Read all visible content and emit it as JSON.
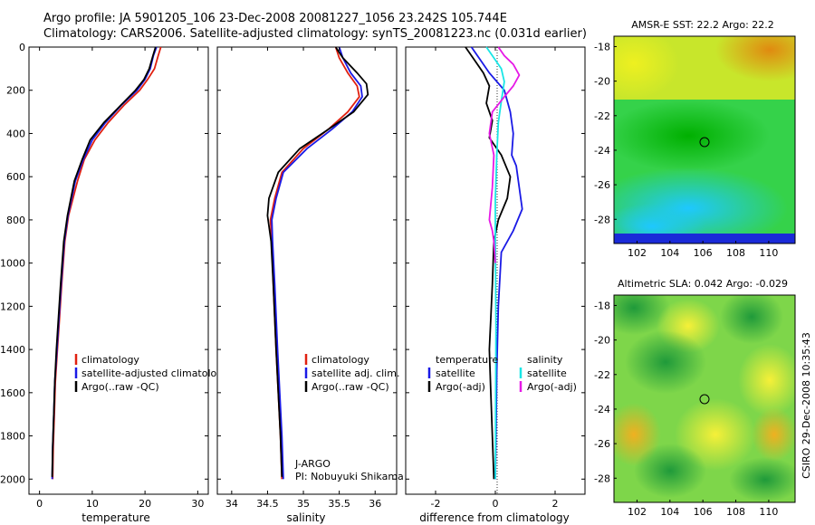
{
  "header": {
    "line1": "Argo profile: JA 5901205_106 23-Dec-2008 20081227_1056 23.242S 105.744E",
    "line2": "Climatology: CARS2006. Satellite-adjusted climatology: synTS_20081223.nc (0.031d earlier)"
  },
  "side_credit": "CSIRO 29-Dec-2008 10:35:43",
  "colors": {
    "climatology": "#e02010",
    "satellite": "#1a1ae6",
    "argo": "#000000",
    "satellite_sal": "#19e6e6",
    "argo_sal": "#e619e6"
  },
  "chart_data": [
    {
      "type": "line",
      "name": "temperature",
      "xlabel": "temperature",
      "ylabel": "",
      "xlim": [
        -2,
        32
      ],
      "ylim": [
        0,
        2070
      ],
      "xticks": [
        "0",
        "10",
        "20",
        "30"
      ],
      "xtick_values": [
        0,
        10,
        20,
        30
      ],
      "yticks": [
        "0",
        "200",
        "400",
        "600",
        "800",
        "1000",
        "1200",
        "1400",
        "1600",
        "1800",
        "2000"
      ],
      "ytick_values": [
        0,
        200,
        400,
        600,
        800,
        1000,
        1200,
        1400,
        1600,
        1800,
        2000
      ],
      "legend": [
        "climatology",
        "satellite-adjusted climatology",
        "Argo(..raw -QC)"
      ],
      "series": [
        {
          "name": "climatology",
          "color": "#e02010",
          "x": [
            23,
            22.5,
            21.8,
            20.5,
            19,
            16,
            13,
            10.5,
            8.5,
            7.2,
            5.5,
            4.8,
            4.2,
            3.8,
            3.4,
            3,
            2.8,
            2.6,
            2.5
          ],
          "y": [
            0,
            40,
            100,
            150,
            200,
            270,
            350,
            430,
            520,
            620,
            780,
            900,
            1100,
            1250,
            1400,
            1550,
            1700,
            1850,
            2000
          ]
        },
        {
          "name": "satellite",
          "color": "#1a1ae6",
          "x": [
            22.2,
            21.6,
            21,
            20,
            18.5,
            15.5,
            12.5,
            10,
            8.3,
            6.8,
            5.4,
            4.7,
            4.1,
            3.7,
            3.3,
            2.9,
            2.7,
            2.5,
            2.4
          ],
          "y": [
            0,
            40,
            100,
            150,
            200,
            270,
            350,
            430,
            520,
            620,
            780,
            900,
            1100,
            1250,
            1400,
            1550,
            1700,
            1850,
            2000
          ]
        },
        {
          "name": "argo",
          "color": "#000000",
          "x": [
            22,
            21.5,
            20.8,
            19.8,
            18.2,
            15.4,
            12.2,
            9.6,
            8.1,
            6.6,
            5.3,
            4.6,
            4,
            3.6,
            3.2,
            2.9,
            2.7,
            2.5,
            2.4
          ],
          "y": [
            0,
            40,
            100,
            150,
            200,
            270,
            350,
            430,
            520,
            620,
            780,
            900,
            1100,
            1250,
            1400,
            1550,
            1700,
            1850,
            1990
          ]
        }
      ]
    },
    {
      "type": "line",
      "name": "salinity",
      "xlabel": "salinity",
      "xlim": [
        33.8,
        36.3
      ],
      "ylim": [
        0,
        2070
      ],
      "xticks": [
        "34",
        "34.5",
        "35",
        "35.5",
        "36"
      ],
      "xtick_values": [
        34,
        34.5,
        35,
        35.5,
        36
      ],
      "legend": [
        "climatology",
        "satellite adj. clim.",
        "Argo(..raw -QC)"
      ],
      "annotation": [
        "J-ARGO",
        "PI: Nobuyuki Shikama"
      ],
      "series": [
        {
          "name": "climatology",
          "color": "#e02010",
          "x": [
            35.45,
            35.5,
            35.62,
            35.75,
            35.78,
            35.62,
            35.35,
            35.0,
            34.7,
            34.6,
            34.54,
            34.56,
            34.58,
            34.62,
            34.65,
            34.68,
            34.7
          ],
          "y": [
            0,
            50,
            120,
            180,
            230,
            300,
            380,
            470,
            580,
            700,
            800,
            900,
            1100,
            1400,
            1600,
            1800,
            2000
          ]
        },
        {
          "name": "satellite",
          "color": "#1a1ae6",
          "x": [
            35.5,
            35.55,
            35.66,
            35.8,
            35.82,
            35.68,
            35.4,
            35.05,
            34.72,
            34.62,
            34.56,
            34.57,
            34.6,
            34.64,
            34.67,
            34.7,
            34.72
          ],
          "y": [
            0,
            50,
            120,
            180,
            230,
            300,
            380,
            470,
            580,
            700,
            800,
            900,
            1100,
            1400,
            1600,
            1800,
            2000
          ]
        },
        {
          "name": "argo",
          "color": "#000000",
          "x": [
            35.45,
            35.55,
            35.75,
            35.88,
            35.9,
            35.7,
            35.35,
            34.95,
            34.65,
            34.52,
            34.5,
            34.55,
            34.58,
            34.62,
            34.65,
            34.68,
            34.7
          ],
          "y": [
            0,
            50,
            120,
            170,
            220,
            300,
            380,
            470,
            580,
            700,
            780,
            900,
            1100,
            1400,
            1600,
            1800,
            1990
          ]
        }
      ]
    },
    {
      "type": "line",
      "name": "difference from climatology",
      "xlabel": "difference from climatology",
      "xlim": [
        -3,
        3
      ],
      "ylim": [
        0,
        2070
      ],
      "xticks": [
        "-2",
        "0",
        "2"
      ],
      "xtick_values": [
        -2,
        0,
        2
      ],
      "legend_left": [
        "temperature",
        "satellite",
        "Argo(-adj)"
      ],
      "legend_right": [
        "salinity",
        "satellite",
        "Argo(-adj)"
      ],
      "series": [
        {
          "name": "temperature satellite",
          "color": "#1a1ae6",
          "x": [
            -0.8,
            -0.5,
            -0.2,
            0.3,
            0.5,
            0.6,
            0.55,
            0.7,
            0.8,
            0.9,
            0.6,
            0.2,
            0.1,
            0.05,
            0.02,
            0
          ],
          "y": [
            0,
            60,
            120,
            200,
            300,
            400,
            500,
            550,
            650,
            750,
            850,
            950,
            1200,
            1500,
            1800,
            2000
          ]
        },
        {
          "name": "temperature argo",
          "color": "#000000",
          "x": [
            -1,
            -0.7,
            -0.4,
            -0.2,
            -0.3,
            -0.1,
            -0.2,
            0.2,
            0.5,
            0.4,
            0.1,
            -0.05,
            -0.1,
            -0.2,
            -0.15,
            -0.1,
            -0.05
          ],
          "y": [
            0,
            60,
            120,
            180,
            260,
            340,
            420,
            500,
            600,
            700,
            800,
            900,
            1100,
            1400,
            1600,
            1800,
            2000
          ]
        },
        {
          "name": "salinity satellite",
          "color": "#19e6e6",
          "x": [
            -0.3,
            -0.1,
            0.2,
            0.3,
            0.2,
            0.1,
            0.05,
            0,
            0,
            0.02,
            0.01,
            0
          ],
          "y": [
            0,
            40,
            100,
            160,
            250,
            350,
            500,
            700,
            900,
            1300,
            1700,
            2000
          ]
        },
        {
          "name": "salinity argo",
          "color": "#e619e6",
          "x": [
            0.1,
            0.3,
            0.6,
            0.8,
            0.6,
            0.3,
            -0.1,
            -0.2,
            -0.05,
            -0.1,
            -0.2,
            -0.1,
            -0.05,
            0
          ],
          "y": [
            0,
            40,
            80,
            130,
            180,
            230,
            300,
            400,
            500,
            650,
            800,
            850,
            900,
            1000
          ]
        }
      ]
    },
    {
      "type": "heatmap",
      "name": "sst-map",
      "title": "AMSR-E SST: 22.2  Argo: 22.2",
      "xticks": [
        "102",
        "104",
        "106",
        "108",
        "110"
      ],
      "yticks": [
        "-18",
        "-20",
        "-22",
        "-24",
        "-26",
        "-28"
      ],
      "marker": {
        "lon": 105.744,
        "lat": -23.242
      }
    },
    {
      "type": "heatmap",
      "name": "sla-map",
      "title": "Altimetric SLA: 0.042  Argo: -0.029",
      "xticks": [
        "102",
        "104",
        "106",
        "108",
        "110"
      ],
      "yticks": [
        "-18",
        "-20",
        "-22",
        "-24",
        "-26",
        "-28"
      ],
      "marker": {
        "lon": 105.744,
        "lat": -23.242
      }
    }
  ]
}
